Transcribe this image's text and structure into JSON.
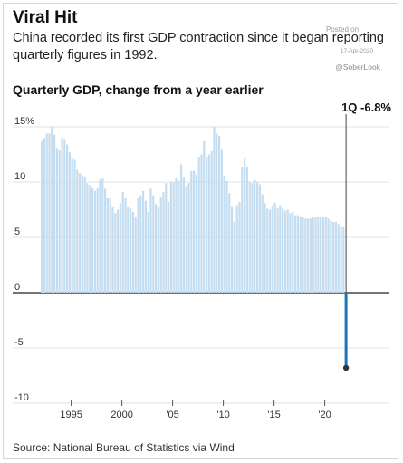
{
  "headline": "Viral Hit",
  "dek": "China recorded its first GDP contraction since it began reporting quarterly figures in 1992.",
  "watermark": {
    "posted": "Posted on",
    "date": "17-Apr-2020",
    "handle": "@SoberLook"
  },
  "source": "Source: National Bureau of Statistics via Wind",
  "colors": {
    "bar": "#c5ddf0",
    "highlight": "#1a75b8",
    "gridline": "#e2e2e2",
    "zero_line": "#222222"
  },
  "chart_data": {
    "type": "bar",
    "title": "Quarterly GDP, change from a year earlier",
    "xlabel": "",
    "ylabel": "",
    "ylim": [
      -10,
      15
    ],
    "y_ticks": [
      "15%",
      "10",
      "5",
      "0",
      "-5",
      "-10"
    ],
    "y_tick_values": [
      15,
      10,
      5,
      0,
      -5,
      -10
    ],
    "x_ticks": [
      "1995",
      "2000",
      "'05",
      "'10",
      "'15",
      "'20"
    ],
    "x_tick_years": [
      1995,
      2000,
      2005,
      2010,
      2015,
      2020
    ],
    "start_year": 1992,
    "annotation": {
      "label": "1Q -6.8%",
      "value": -6.8,
      "year": 2020,
      "quarter": 1
    },
    "values": [
      13.7,
      14.0,
      14.4,
      14.4,
      15.0,
      14.3,
      13.1,
      12.9,
      14.0,
      13.9,
      13.4,
      12.7,
      12.2,
      12.0,
      11.1,
      10.8,
      10.6,
      10.5,
      9.9,
      9.7,
      9.5,
      9.2,
      9.5,
      10.2,
      10.4,
      9.4,
      8.6,
      8.6,
      7.8,
      7.2,
      7.5,
      8.1,
      9.1,
      8.6,
      7.8,
      7.6,
      7.3,
      6.8,
      8.6,
      8.8,
      9.2,
      8.3,
      7.3,
      9.4,
      8.8,
      8.0,
      7.7,
      8.7,
      9.1,
      9.9,
      8.2,
      10.0,
      10.0,
      10.4,
      10.1,
      11.6,
      10.5,
      9.6,
      9.9,
      11.0,
      11.0,
      10.7,
      12.3,
      12.5,
      13.7,
      12.3,
      12.5,
      12.8,
      15.0,
      14.4,
      14.2,
      13.0,
      10.6,
      10.1,
      9.0,
      7.8,
      6.4,
      7.9,
      8.2,
      11.4,
      12.2,
      11.4,
      10.0,
      9.9,
      10.2,
      10.0,
      9.8,
      8.9,
      8.1,
      7.6,
      7.5,
      7.9,
      8.1,
      7.6,
      7.9,
      7.6,
      7.4,
      7.5,
      7.2,
      7.3,
      7.0,
      7.0,
      6.9,
      6.8,
      6.7,
      6.7,
      6.7,
      6.8,
      6.9,
      6.9,
      6.8,
      6.8,
      6.8,
      6.7,
      6.5,
      6.4,
      6.4,
      6.2,
      6.0,
      6.0,
      -6.8
    ]
  }
}
